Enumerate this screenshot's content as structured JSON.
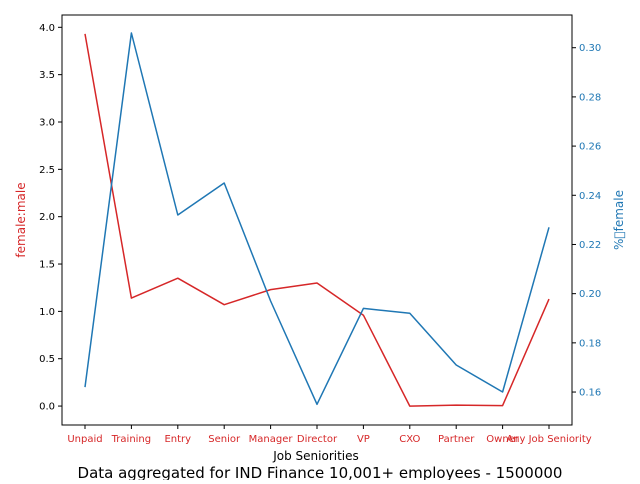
{
  "chart_data": {
    "type": "line",
    "categories": [
      "Unpaid",
      "Training",
      "Entry",
      "Senior",
      "Manager",
      "Director",
      "VP",
      "CXO",
      "Partner",
      "Owner",
      "Any Job Seniority"
    ],
    "xlabel": "Job Seniorities",
    "caption": "Data aggregated for IND Finance 10,001+ employees - 1500000",
    "left_axis": {
      "label": "female:male",
      "color": "#d62728",
      "ylim": [
        -0.2,
        4.13
      ],
      "ticks": [
        0.0,
        0.5,
        1.0,
        1.5,
        2.0,
        2.5,
        3.0,
        3.5,
        4.0
      ],
      "tick_labels": [
        "0.0",
        "0.5",
        "1.0",
        "1.5",
        "2.0",
        "2.5",
        "3.0",
        "3.5",
        "4.0"
      ]
    },
    "right_axis": {
      "label": "%\u0000female",
      "color": "#1f77b4",
      "ylim": [
        0.1466,
        0.3133
      ],
      "ticks": [
        0.16,
        0.18,
        0.2,
        0.22,
        0.24,
        0.26,
        0.28,
        0.3
      ],
      "tick_labels": [
        "0.16",
        "0.18",
        "0.20",
        "0.22",
        "0.24",
        "0.26",
        "0.28",
        "0.30"
      ]
    },
    "series": [
      {
        "axis": "left",
        "color": "#d62728",
        "values": [
          3.93,
          1.14,
          1.35,
          1.07,
          1.23,
          1.3,
          0.96,
          0.0,
          0.01,
          0.005,
          1.13
        ]
      },
      {
        "axis": "right",
        "color": "#1f77b4",
        "values": [
          0.162,
          0.306,
          0.232,
          0.245,
          0.197,
          0.155,
          0.194,
          0.192,
          0.171,
          0.16,
          0.227
        ]
      }
    ],
    "grid": false
  }
}
